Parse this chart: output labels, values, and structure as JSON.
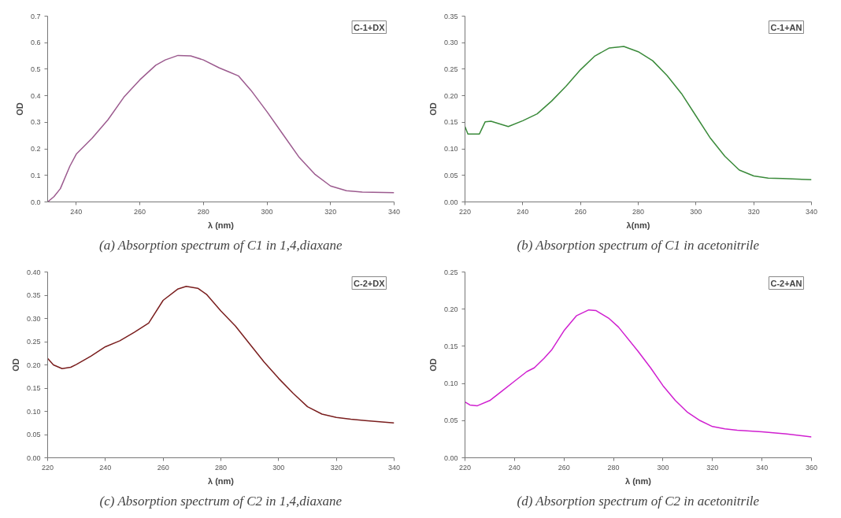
{
  "chart_data": [
    {
      "type": "line",
      "title": "(a) Absorption spectrum of C1 in 1,4,diaxane",
      "xlabel": "λ (nm)",
      "ylabel": "OD",
      "annotations": [
        "C-1+DX"
      ],
      "grid": false,
      "x": [
        231,
        233,
        235,
        238,
        240,
        245,
        250,
        255,
        260,
        265,
        268,
        272,
        276,
        280,
        285,
        288,
        291,
        295,
        300,
        305,
        310,
        315,
        320,
        325,
        330,
        340
      ],
      "series": [
        {
          "color": "#9c5b8f",
          "values": [
            0,
            0.02,
            0.05,
            0.135,
            0.18,
            0.24,
            0.31,
            0.395,
            0.46,
            0.515,
            0.535,
            0.552,
            0.55,
            0.535,
            0.505,
            0.49,
            0.475,
            0.42,
            0.34,
            0.255,
            0.17,
            0.105,
            0.06,
            0.042,
            0.037,
            0.035
          ]
        }
      ],
      "xlim": [
        231,
        340
      ],
      "xticks": [
        240,
        260,
        280,
        300,
        320,
        340
      ],
      "ylim": [
        0,
        0.7
      ],
      "yticks": [
        {
          "value": 0,
          "label": "0.0"
        },
        0.1,
        0.2,
        0.3,
        0.4,
        0.5,
        0.6,
        0.7
      ]
    },
    {
      "type": "line",
      "title": "(b) Absorption spectrum of C1 in acetonitrile",
      "xlabel": "λ(nm)",
      "ylabel": "OD",
      "annotations": [
        "C-1+AN"
      ],
      "grid": false,
      "x": [
        220,
        221,
        225,
        227,
        229,
        235,
        240,
        245,
        250,
        255,
        260,
        265,
        270,
        275,
        280,
        285,
        290,
        295,
        300,
        305,
        310,
        315,
        320,
        325,
        330,
        340
      ],
      "series": [
        {
          "color": "#3a8a3a",
          "values": [
            0.142,
            0.128,
            0.128,
            0.151,
            0.152,
            0.142,
            0.153,
            0.166,
            0.19,
            0.218,
            0.249,
            0.275,
            0.29,
            0.293,
            0.283,
            0.266,
            0.238,
            0.204,
            0.162,
            0.12,
            0.086,
            0.06,
            0.049,
            0.045,
            0.044,
            0.042
          ]
        }
      ],
      "xlim": [
        220,
        340
      ],
      "xticks": [
        220,
        240,
        260,
        280,
        300,
        320,
        340
      ],
      "ylim": [
        0,
        0.35
      ],
      "yticks": [
        {
          "value": 0,
          "label": "0.00"
        },
        {
          "value": 0.05,
          "label": "0.05"
        },
        {
          "value": 0.1,
          "label": "0.10"
        },
        {
          "value": 0.15,
          "label": "0.15"
        },
        {
          "value": 0.2,
          "label": "0.20"
        },
        {
          "value": 0.25,
          "label": "0.25"
        },
        {
          "value": 0.3,
          "label": "0.30"
        },
        {
          "value": 0.35,
          "label": "0.35"
        }
      ]
    },
    {
      "type": "line",
      "title": "(c) Absorption spectrum of C2 in 1,4,diaxane",
      "xlabel": "λ (nm)",
      "ylabel": "OD",
      "annotations": [
        "C-2+DX"
      ],
      "grid": false,
      "x": [
        220,
        222,
        225,
        228,
        230,
        235,
        240,
        245,
        250,
        255,
        260,
        265,
        268,
        272,
        275,
        280,
        285,
        290,
        295,
        300,
        305,
        310,
        315,
        320,
        325,
        330,
        340
      ],
      "series": [
        {
          "color": "#7a1e1e",
          "values": [
            0.214,
            0.2,
            0.192,
            0.195,
            0.201,
            0.219,
            0.239,
            0.252,
            0.27,
            0.29,
            0.339,
            0.363,
            0.369,
            0.365,
            0.352,
            0.316,
            0.284,
            0.245,
            0.206,
            0.171,
            0.139,
            0.11,
            0.094,
            0.087,
            0.083,
            0.08,
            0.075
          ]
        }
      ],
      "xlim": [
        220,
        340
      ],
      "xticks": [
        220,
        240,
        260,
        280,
        300,
        320,
        340
      ],
      "ylim": [
        0,
        0.4
      ],
      "yticks": [
        {
          "value": 0,
          "label": "0.00"
        },
        {
          "value": 0.05,
          "label": "0.05"
        },
        {
          "value": 0.1,
          "label": "0.10"
        },
        {
          "value": 0.15,
          "label": "0.15"
        },
        {
          "value": 0.2,
          "label": "0.20"
        },
        {
          "value": 0.25,
          "label": "0.25"
        },
        {
          "value": 0.3,
          "label": "0.30"
        },
        {
          "value": 0.35,
          "label": "0.35"
        },
        {
          "value": 0.4,
          "label": "0.40"
        }
      ]
    },
    {
      "type": "line",
      "title": "(d) Absorption spectrum of C2 in acetonitrile",
      "xlabel": "λ (nm)",
      "ylabel": "OD",
      "annotations": [
        "C-2+AN"
      ],
      "grid": false,
      "x": [
        220,
        222,
        225,
        230,
        235,
        240,
        245,
        248,
        252,
        255,
        260,
        265,
        270,
        273,
        278,
        282,
        290,
        295,
        300,
        305,
        310,
        315,
        320,
        325,
        330,
        340,
        350,
        360
      ],
      "series": [
        {
          "color": "#d020d0",
          "values": [
            0.075,
            0.071,
            0.07,
            0.077,
            0.09,
            0.103,
            0.116,
            0.121,
            0.134,
            0.145,
            0.171,
            0.191,
            0.199,
            0.198,
            0.188,
            0.176,
            0.143,
            0.121,
            0.097,
            0.077,
            0.061,
            0.05,
            0.042,
            0.039,
            0.037,
            0.035,
            0.032,
            0.028
          ]
        }
      ],
      "xlim": [
        220,
        360
      ],
      "xticks": [
        220,
        240,
        260,
        280,
        300,
        320,
        340,
        360
      ],
      "ylim": [
        0,
        0.25
      ],
      "yticks": [
        {
          "value": 0,
          "label": "0.00"
        },
        {
          "value": 0.05,
          "label": "0.05"
        },
        {
          "value": 0.1,
          "label": "0.10"
        },
        {
          "value": 0.15,
          "label": "0.15"
        },
        {
          "value": 0.2,
          "label": "0.20"
        },
        {
          "value": 0.25,
          "label": "0.25"
        }
      ]
    }
  ]
}
